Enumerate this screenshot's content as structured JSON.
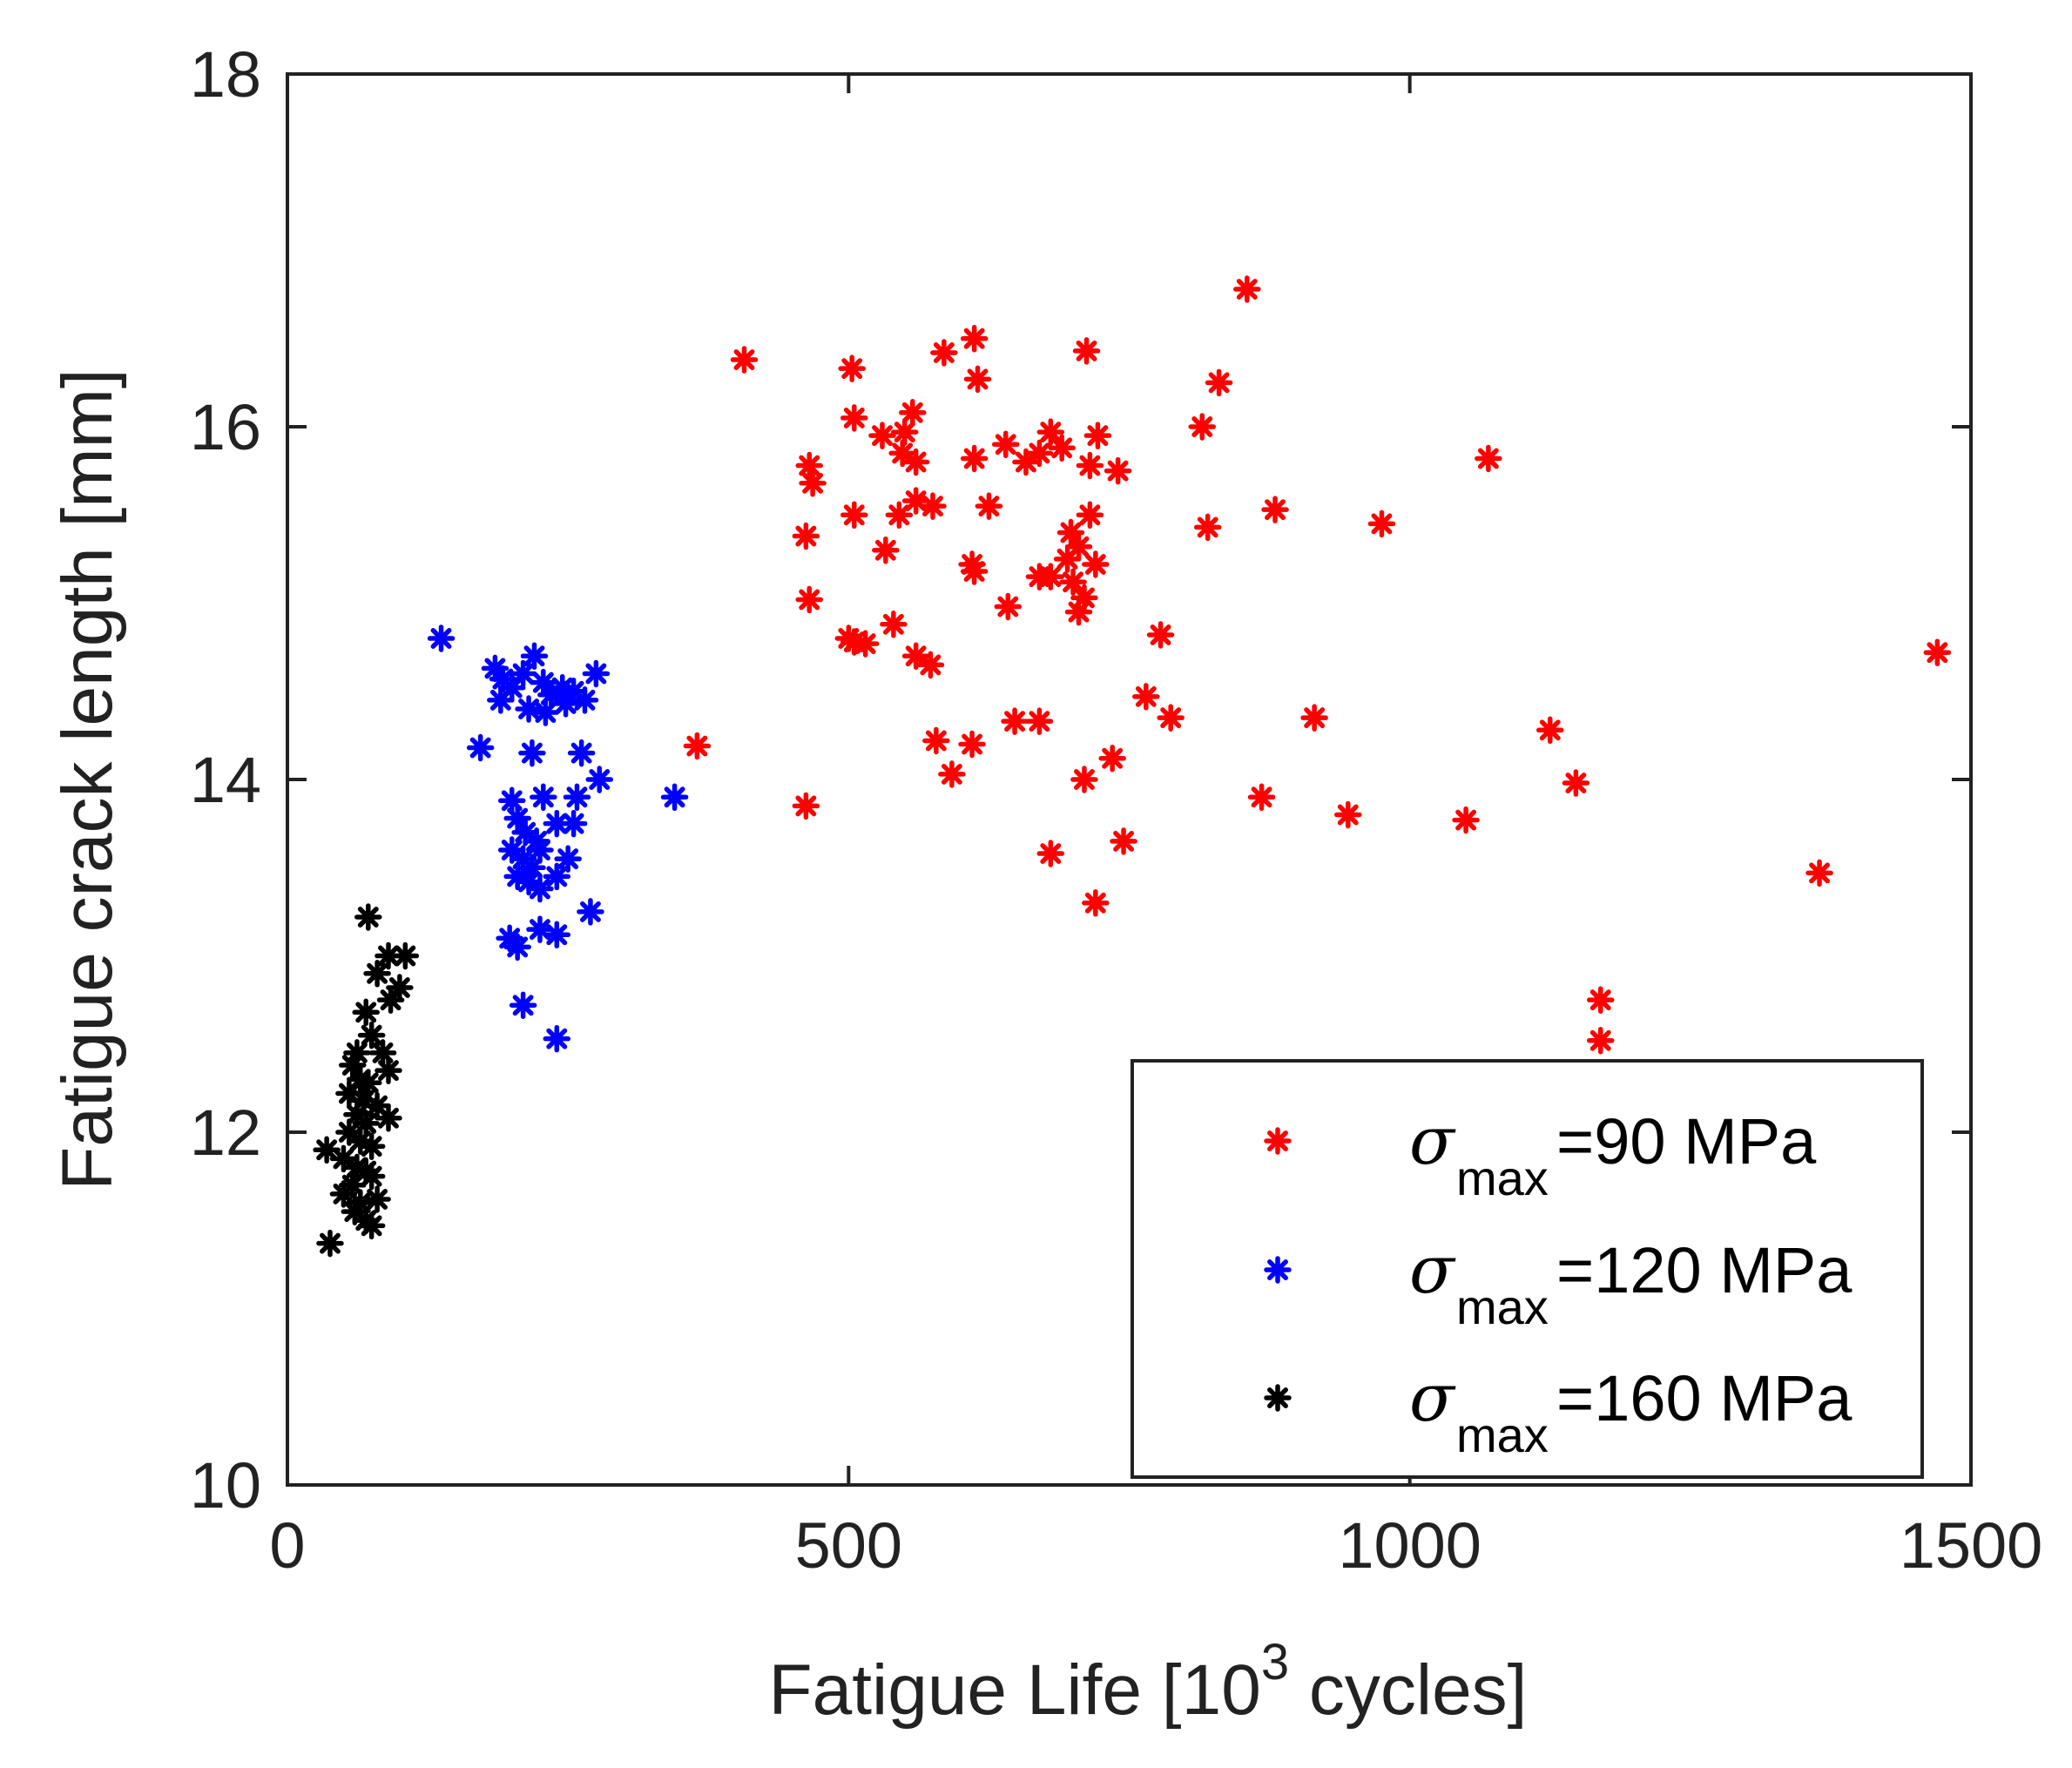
{
  "chart_data": {
    "type": "scatter",
    "xlabel": "Fatigue Life [10",
    "xlabel_exponent": "3",
    "xlabel_suffix": " cycles]",
    "ylabel": "Fatigue crack length [mm]",
    "xlim": [
      0,
      1500
    ],
    "ylim": [
      10,
      18
    ],
    "xticks": [
      0,
      500,
      1000,
      1500
    ],
    "yticks": [
      10,
      12,
      14,
      16,
      18
    ],
    "xtick_labels": [
      "0",
      "500",
      "1000",
      "1500"
    ],
    "ytick_labels": [
      "10",
      "12",
      "14",
      "16",
      "18"
    ],
    "grid": false,
    "legend_position": "bottom-right",
    "series": [
      {
        "name": "σmax=90 MPa",
        "sigma": "σ",
        "sub": "max",
        "label": "=90 MPa",
        "color": "#ff0000",
        "points": [
          [
            407,
            16.38
          ],
          [
            855,
            16.78
          ],
          [
            612,
            16.5
          ],
          [
            585,
            16.42
          ],
          [
            712,
            16.43
          ],
          [
            503,
            16.33
          ],
          [
            615,
            16.27
          ],
          [
            830,
            16.25
          ],
          [
            505,
            16.05
          ],
          [
            530,
            15.95
          ],
          [
            557,
            16.08
          ],
          [
            550,
            15.97
          ],
          [
            815,
            16.0
          ],
          [
            1070,
            15.82
          ],
          [
            465,
            15.78
          ],
          [
            468,
            15.68
          ],
          [
            548,
            15.85
          ],
          [
            560,
            15.8
          ],
          [
            640,
            15.9
          ],
          [
            658,
            15.8
          ],
          [
            670,
            15.85
          ],
          [
            680,
            15.97
          ],
          [
            690,
            15.88
          ],
          [
            722,
            15.95
          ],
          [
            740,
            15.75
          ],
          [
            715,
            15.78
          ],
          [
            612,
            15.82
          ],
          [
            505,
            15.5
          ],
          [
            560,
            15.58
          ],
          [
            545,
            15.5
          ],
          [
            575,
            15.55
          ],
          [
            625,
            15.55
          ],
          [
            820,
            15.43
          ],
          [
            880,
            15.53
          ],
          [
            975,
            15.45
          ],
          [
            462,
            15.38
          ],
          [
            533,
            15.3
          ],
          [
            610,
            15.22
          ],
          [
            612,
            15.18
          ],
          [
            698,
            15.4
          ],
          [
            715,
            15.5
          ],
          [
            705,
            15.32
          ],
          [
            695,
            15.25
          ],
          [
            680,
            15.15
          ],
          [
            700,
            15.12
          ],
          [
            720,
            15.22
          ],
          [
            710,
            15.03
          ],
          [
            465,
            15.02
          ],
          [
            500,
            14.8
          ],
          [
            505,
            14.78
          ],
          [
            515,
            14.77
          ],
          [
            540,
            14.88
          ],
          [
            560,
            14.7
          ],
          [
            573,
            14.65
          ],
          [
            642,
            14.98
          ],
          [
            670,
            15.15
          ],
          [
            705,
            14.95
          ],
          [
            778,
            14.82
          ],
          [
            1470,
            14.72
          ],
          [
            365,
            14.19
          ],
          [
            578,
            14.22
          ],
          [
            610,
            14.2
          ],
          [
            592,
            14.03
          ],
          [
            648,
            14.33
          ],
          [
            670,
            14.33
          ],
          [
            765,
            14.47
          ],
          [
            787,
            14.35
          ],
          [
            915,
            14.35
          ],
          [
            1125,
            14.28
          ],
          [
            462,
            13.85
          ],
          [
            710,
            14.0
          ],
          [
            735,
            14.12
          ],
          [
            868,
            13.9
          ],
          [
            945,
            13.8
          ],
          [
            1050,
            13.77
          ],
          [
            1148,
            13.98
          ],
          [
            680,
            13.58
          ],
          [
            745,
            13.65
          ],
          [
            720,
            13.3
          ],
          [
            1365,
            13.47
          ],
          [
            1170,
            12.75
          ],
          [
            1170,
            12.52
          ]
        ]
      },
      {
        "name": "σmax=120 MPa",
        "sigma": "σ",
        "sub": "max",
        "label": "=120 MPa",
        "color": "#0000ff",
        "points": [
          [
            137,
            14.8
          ],
          [
            185,
            14.63
          ],
          [
            192,
            14.57
          ],
          [
            200,
            14.52
          ],
          [
            210,
            14.6
          ],
          [
            220,
            14.7
          ],
          [
            228,
            14.55
          ],
          [
            235,
            14.48
          ],
          [
            245,
            14.52
          ],
          [
            255,
            14.5
          ],
          [
            265,
            14.45
          ],
          [
            275,
            14.6
          ],
          [
            190,
            14.45
          ],
          [
            215,
            14.4
          ],
          [
            230,
            14.38
          ],
          [
            248,
            14.43
          ],
          [
            172,
            14.18
          ],
          [
            218,
            14.15
          ],
          [
            262,
            14.15
          ],
          [
            278,
            14.0
          ],
          [
            345,
            13.9
          ],
          [
            200,
            13.88
          ],
          [
            228,
            13.9
          ],
          [
            258,
            13.9
          ],
          [
            205,
            13.78
          ],
          [
            212,
            13.7
          ],
          [
            222,
            13.65
          ],
          [
            240,
            13.75
          ],
          [
            255,
            13.75
          ],
          [
            200,
            13.6
          ],
          [
            210,
            13.55
          ],
          [
            218,
            13.5
          ],
          [
            225,
            13.6
          ],
          [
            250,
            13.55
          ],
          [
            205,
            13.45
          ],
          [
            215,
            13.42
          ],
          [
            225,
            13.38
          ],
          [
            240,
            13.45
          ],
          [
            270,
            13.25
          ],
          [
            198,
            13.1
          ],
          [
            205,
            13.05
          ],
          [
            225,
            13.15
          ],
          [
            240,
            13.12
          ],
          [
            210,
            12.72
          ],
          [
            240,
            12.53
          ]
        ]
      },
      {
        "name": "σmax=160 MPa",
        "sigma": "σ",
        "sub": "max",
        "label": "=160 MPa",
        "color": "#000000",
        "points": [
          [
            72,
            13.22
          ],
          [
            90,
            13.0
          ],
          [
            105,
            13.0
          ],
          [
            80,
            12.9
          ],
          [
            100,
            12.82
          ],
          [
            92,
            12.75
          ],
          [
            70,
            12.68
          ],
          [
            75,
            12.55
          ],
          [
            62,
            12.45
          ],
          [
            85,
            12.45
          ],
          [
            58,
            12.38
          ],
          [
            90,
            12.35
          ],
          [
            65,
            12.3
          ],
          [
            72,
            12.28
          ],
          [
            55,
            12.22
          ],
          [
            68,
            12.18
          ],
          [
            80,
            12.15
          ],
          [
            62,
            12.1
          ],
          [
            70,
            12.05
          ],
          [
            90,
            12.08
          ],
          [
            55,
            12.0
          ],
          [
            65,
            11.95
          ],
          [
            75,
            11.92
          ],
          [
            35,
            11.9
          ],
          [
            50,
            11.85
          ],
          [
            62,
            11.8
          ],
          [
            70,
            11.78
          ],
          [
            58,
            11.7
          ],
          [
            75,
            11.75
          ],
          [
            50,
            11.65
          ],
          [
            65,
            11.6
          ],
          [
            80,
            11.62
          ],
          [
            60,
            11.55
          ],
          [
            70,
            11.5
          ],
          [
            75,
            11.47
          ],
          [
            38,
            11.37
          ]
        ]
      }
    ]
  }
}
